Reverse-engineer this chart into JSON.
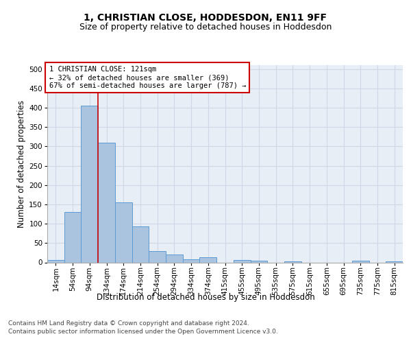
{
  "title": "1, CHRISTIAN CLOSE, HODDESDON, EN11 9FF",
  "subtitle": "Size of property relative to detached houses in Hoddesdon",
  "xlabel": "Distribution of detached houses by size in Hoddesdon",
  "ylabel": "Number of detached properties",
  "bar_labels": [
    "14sqm",
    "54sqm",
    "94sqm",
    "134sqm",
    "174sqm",
    "214sqm",
    "254sqm",
    "294sqm",
    "334sqm",
    "374sqm",
    "415sqm",
    "455sqm",
    "495sqm",
    "535sqm",
    "575sqm",
    "615sqm",
    "655sqm",
    "695sqm",
    "735sqm",
    "775sqm",
    "815sqm"
  ],
  "bar_values": [
    6,
    130,
    405,
    310,
    155,
    93,
    30,
    20,
    8,
    13,
    0,
    6,
    5,
    0,
    3,
    0,
    0,
    0,
    4,
    0,
    3
  ],
  "bar_color": "#aac4e0",
  "bar_edge_color": "#5b9bd5",
  "property_line_x": 2.5,
  "annotation_title": "1 CHRISTIAN CLOSE: 121sqm",
  "annotation_line2": "← 32% of detached houses are smaller (369)",
  "annotation_line3": "67% of semi-detached houses are larger (787) →",
  "annotation_box_color": "#ffffff",
  "annotation_box_edge": "#cc0000",
  "ylim": [
    0,
    510
  ],
  "yticks": [
    0,
    50,
    100,
    150,
    200,
    250,
    300,
    350,
    400,
    450,
    500
  ],
  "vline_color": "#cc0000",
  "grid_color": "#d0d8e8",
  "background_color": "#e8eef5",
  "footer_line1": "Contains HM Land Registry data © Crown copyright and database right 2024.",
  "footer_line2": "Contains public sector information licensed under the Open Government Licence v3.0.",
  "title_fontsize": 10,
  "subtitle_fontsize": 9,
  "axis_label_fontsize": 8.5,
  "tick_fontsize": 7.5,
  "annotation_fontsize": 7.5,
  "footer_fontsize": 6.5
}
